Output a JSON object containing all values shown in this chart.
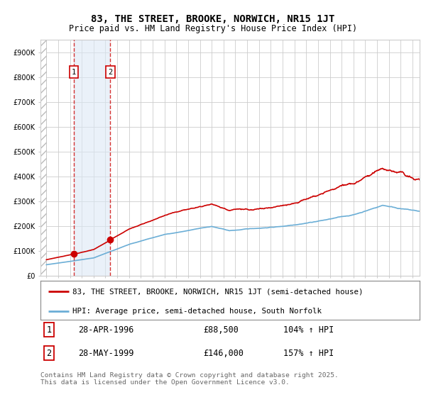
{
  "title": "83, THE STREET, BROOKE, NORWICH, NR15 1JT",
  "subtitle": "Price paid vs. HM Land Registry's House Price Index (HPI)",
  "legend_line1": "83, THE STREET, BROOKE, NORWICH, NR15 1JT (semi-detached house)",
  "legend_line2": "HPI: Average price, semi-detached house, South Norfolk",
  "footer": "Contains HM Land Registry data © Crown copyright and database right 2025.\nThis data is licensed under the Open Government Licence v3.0.",
  "sale1_date": "28-APR-1996",
  "sale1_price": "£88,500",
  "sale1_hpi": "104% ↑ HPI",
  "sale1_year": 1996.32,
  "sale1_value": 88500,
  "sale2_date": "28-MAY-1999",
  "sale2_price": "£146,000",
  "sale2_hpi": "157% ↑ HPI",
  "sale2_year": 1999.42,
  "sale2_value": 146000,
  "hpi_color": "#6baed6",
  "price_color": "#cc0000",
  "background_color": "#ffffff",
  "grid_color": "#cccccc",
  "ylim": [
    0,
    950000
  ],
  "xlim_left": 1993.5,
  "xlim_right": 2025.6,
  "hatch_end": 1994.0,
  "sale_vline_color": "#cc0000",
  "sale_box_color": "#cc0000",
  "highlight_color": "#dce9f5"
}
